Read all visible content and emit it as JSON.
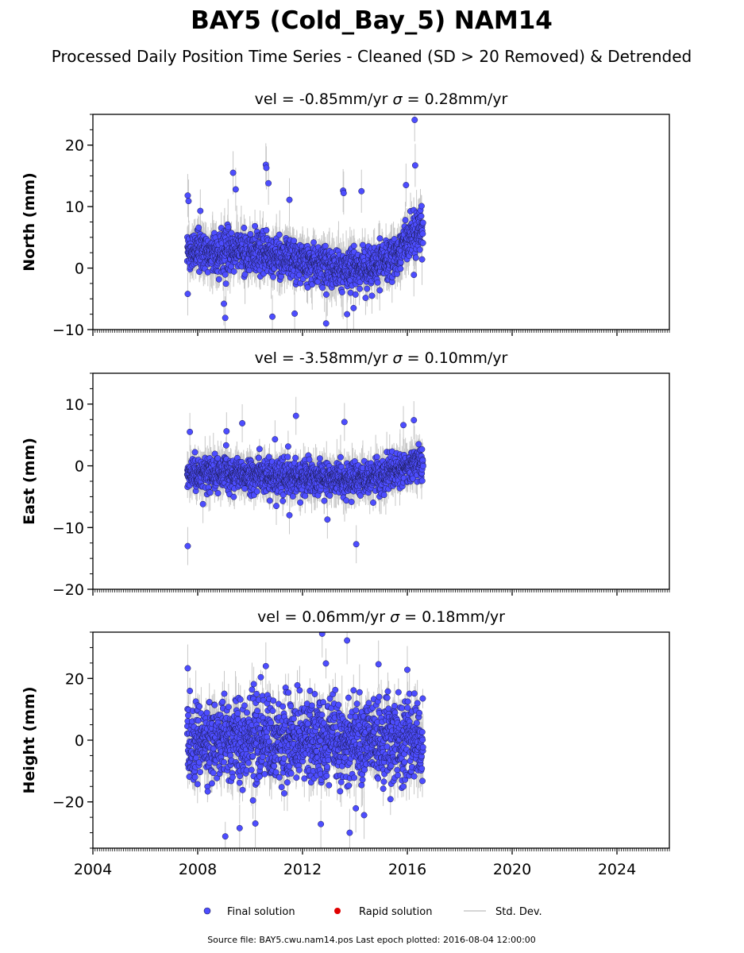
{
  "title": "BAY5 (Cold_Bay_5) NAM14",
  "subtitle": "Processed Daily Position Time Series - Cleaned (SD > 20 Removed) & Detrended",
  "legend": {
    "final": "Final solution",
    "rapid": "Rapid solution",
    "sd": "Std. Dev."
  },
  "footer": "Source file: BAY5.cwu.nam14.pos  Last epoch plotted: 2016-08-04 12:00:00",
  "colors": {
    "final": "#4d4dff",
    "final_edge": "#1a1a4d",
    "rapid": "#e00000",
    "sd": "#c8c8c8"
  },
  "chart_data": [
    {
      "type": "scatter",
      "panel": "north",
      "title_vel": "vel = -0.85mm/yr",
      "title_sigma": "= 0.28mm/yr",
      "ylabel": "North (mm)",
      "xlim": [
        2004,
        2026
      ],
      "ylim": [
        -10,
        25
      ],
      "yticks": [
        -10,
        0,
        10,
        20
      ],
      "x_start": 2007.6,
      "x_end": 2016.6,
      "baseline": [
        [
          2007.6,
          2.8
        ],
        [
          2009.5,
          2.8
        ],
        [
          2011.5,
          1.5
        ],
        [
          2013.5,
          -0.3
        ],
        [
          2015.0,
          0.5
        ],
        [
          2015.6,
          2.5
        ],
        [
          2016.6,
          7.0
        ]
      ],
      "noise_sd": 1.6,
      "err_sd": 2.5,
      "outliers": [
        [
          2007.62,
          11.8
        ],
        [
          2007.65,
          10.9
        ],
        [
          2008.1,
          9.3
        ],
        [
          2009.35,
          15.5
        ],
        [
          2009.45,
          12.8
        ],
        [
          2010.6,
          16.8
        ],
        [
          2010.62,
          16.3
        ],
        [
          2010.7,
          13.8
        ],
        [
          2011.5,
          11.1
        ],
        [
          2013.55,
          12.6
        ],
        [
          2013.57,
          12.2
        ],
        [
          2014.25,
          12.5
        ],
        [
          2015.95,
          13.5
        ],
        [
          2016.28,
          24.1
        ],
        [
          2016.3,
          16.7
        ],
        [
          2009.05,
          -8.1
        ],
        [
          2010.85,
          -7.9
        ],
        [
          2012.9,
          -9.0
        ],
        [
          2013.7,
          -7.5
        ],
        [
          2013.95,
          -6.5
        ],
        [
          2011.7,
          -7.4
        ],
        [
          2016.25,
          -1.1
        ],
        [
          2009.0,
          -5.8
        ],
        [
          2007.62,
          -4.2
        ]
      ]
    },
    {
      "type": "scatter",
      "panel": "east",
      "title_vel": "vel = -3.58mm/yr",
      "title_sigma": "= 0.10mm/yr",
      "ylabel": "East (mm)",
      "xlim": [
        2004,
        2026
      ],
      "ylim": [
        -20,
        15
      ],
      "yticks": [
        -20,
        -10,
        0,
        10
      ],
      "x_start": 2007.6,
      "x_end": 2016.6,
      "baseline": [
        [
          2007.6,
          -1.0
        ],
        [
          2010.0,
          -1.5
        ],
        [
          2012.5,
          -2.0
        ],
        [
          2014.5,
          -2.3
        ],
        [
          2016.6,
          0.5
        ]
      ],
      "noise_sd": 1.3,
      "err_sd": 2.2,
      "outliers": [
        [
          2007.62,
          -13.0
        ],
        [
          2007.7,
          5.5
        ],
        [
          2009.1,
          5.6
        ],
        [
          2009.7,
          6.9
        ],
        [
          2011.75,
          8.1
        ],
        [
          2013.6,
          7.1
        ],
        [
          2016.25,
          7.4
        ],
        [
          2015.85,
          6.6
        ],
        [
          2012.95,
          -8.7
        ],
        [
          2014.05,
          -12.7
        ],
        [
          2011.5,
          -8.0
        ],
        [
          2011.0,
          -6.5
        ],
        [
          2008.2,
          -6.2
        ],
        [
          2010.95,
          4.3
        ]
      ]
    },
    {
      "type": "scatter",
      "panel": "height",
      "title_vel": "vel = 0.06mm/yr",
      "title_sigma": "= 0.18mm/yr",
      "ylabel": "Height (mm)",
      "xlim": [
        2004,
        2026
      ],
      "ylim": [
        -35,
        35
      ],
      "yticks": [
        -20,
        0,
        20
      ],
      "xticks": [
        2004,
        2008,
        2012,
        2016,
        2020,
        2024
      ],
      "x_start": 2007.6,
      "x_end": 2016.6,
      "baseline": [
        [
          2007.6,
          0.0
        ],
        [
          2016.6,
          0.0
        ]
      ],
      "noise_sd": 6.5,
      "err_sd": 5.5,
      "outliers": [
        [
          2012.75,
          34.5
        ],
        [
          2013.7,
          32.3
        ],
        [
          2009.6,
          -28.5
        ],
        [
          2013.8,
          -30.0
        ],
        [
          2007.62,
          23.3
        ],
        [
          2010.6,
          24.0
        ],
        [
          2014.9,
          24.6
        ],
        [
          2016.0,
          22.8
        ],
        [
          2012.7,
          -27.2
        ],
        [
          2010.2,
          -27.0
        ],
        [
          2014.35,
          -24.3
        ]
      ]
    }
  ]
}
